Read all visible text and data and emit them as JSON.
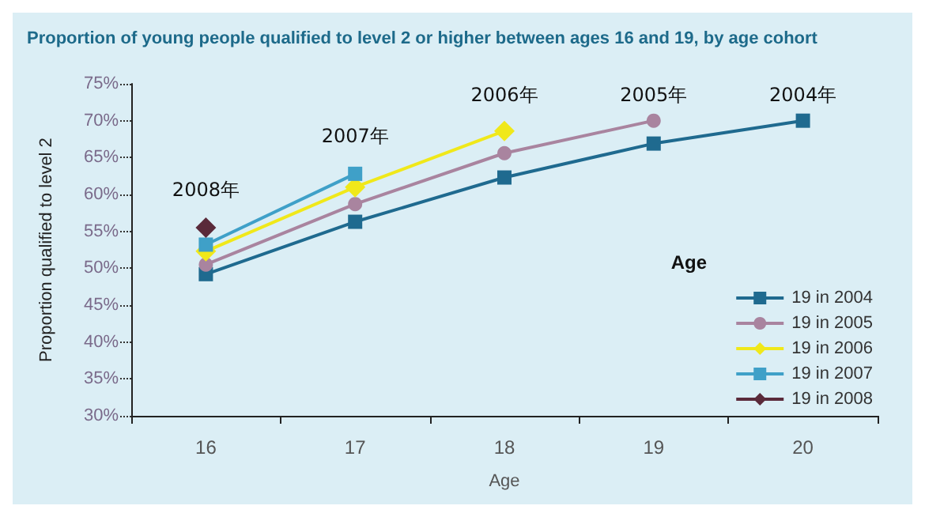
{
  "chart_data": {
    "type": "line",
    "title": "Proportion of young people qualified to level 2 or higher between ages 16 and 19, by age cohort",
    "xlabel": "Age",
    "ylabel": "Proportion qualified to level 2",
    "legend_title": "Age",
    "categories": [
      "16",
      "17",
      "18",
      "19",
      "20"
    ],
    "series": [
      {
        "name": "19 in 2004",
        "color": "#1f6a8f",
        "marker": "square",
        "values": [
          49.2,
          56.3,
          62.3,
          66.9,
          70
        ]
      },
      {
        "name": "19 in 2005",
        "color": "#a9849f",
        "marker": "circle",
        "values": [
          50.5,
          58.7,
          65.6,
          70,
          null
        ]
      },
      {
        "name": "19 in 2006",
        "color": "#f0e81a",
        "marker": "diamond",
        "values": [
          52.3,
          61,
          68.6,
          null,
          null
        ]
      },
      {
        "name": "19 in 2007",
        "color": "#3fa0c8",
        "marker": "square",
        "values": [
          53.2,
          62.8,
          null,
          null,
          null
        ]
      },
      {
        "name": "19 in 2008",
        "color": "#5a2a3a",
        "marker": "diamond",
        "values": [
          55.5,
          null,
          null,
          null,
          null
        ]
      }
    ],
    "ylim": [
      30,
      75
    ],
    "yticks": [
      {
        "value": 30,
        "label": "30%"
      },
      {
        "value": 35,
        "label": "35%"
      },
      {
        "value": 40,
        "label": "40%"
      },
      {
        "value": 45,
        "label": "45%"
      },
      {
        "value": 50,
        "label": "50%"
      },
      {
        "value": 55,
        "label": "55%"
      },
      {
        "value": 60,
        "label": "60%"
      },
      {
        "value": 65,
        "label": "65%"
      },
      {
        "value": 70,
        "label": "70%"
      },
      {
        "value": 75,
        "label": "75%"
      }
    ],
    "annotations": [
      "2008年",
      "2007年",
      "2006年",
      "2005年",
      "2004年"
    ],
    "grid": false,
    "legend": "right"
  }
}
